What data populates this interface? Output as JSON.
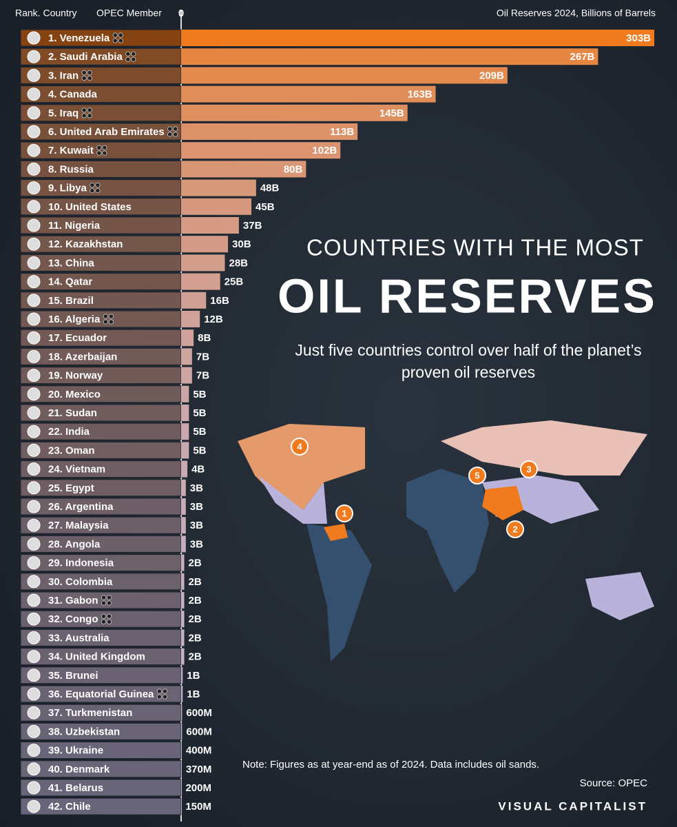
{
  "chart_data": {
    "type": "bar",
    "orientation": "horizontal",
    "title": "COUNTRIES WITH THE MOST",
    "title_main": "OIL RESERVES",
    "subtitle": "Just five countries control over half of the planet’s proven oil reserves",
    "rank_country_label": "Rank. Country",
    "opec_label": "OPEC Member",
    "value_axis_label": "Oil Reserves 2024, Billions of Barrels",
    "note": "Note: Figures as at year-end as of 2024. Data includes oil sands.",
    "source": "Source: OPEC",
    "brand": "VISUAL CAPITALIST",
    "categories": [
      "1. Venezuela",
      "2. Saudi Arabia",
      "3. Iran",
      "4. Canada",
      "5. Iraq",
      "6. United Arab Emirates",
      "7. Kuwait",
      "8. Russia",
      "9. Libya",
      "10. United States",
      "11. Nigeria",
      "12. Kazakhstan",
      "13. China",
      "14. Qatar",
      "15. Brazil",
      "16. Algeria",
      "17. Ecuador",
      "18. Azerbaijan",
      "19. Norway",
      "20. Mexico",
      "21. Sudan",
      "22. India",
      "23. Oman",
      "24. Vietnam",
      "25. Egypt",
      "26. Argentina",
      "27. Malaysia",
      "28. Angola",
      "29. Indonesia",
      "30. Colombia",
      "31. Gabon",
      "32. Congo",
      "33. Australia",
      "34. United Kingdom",
      "35. Brunei",
      "36. Equatorial Guinea",
      "37. Turkmenistan",
      "38. Uzbekistan",
      "39. Ukraine",
      "40. Denmark",
      "41. Belarus",
      "42. Chile"
    ],
    "values": [
      303,
      267,
      209,
      163,
      145,
      113,
      102,
      80,
      48,
      45,
      37,
      30,
      28,
      25,
      16,
      12,
      8,
      7,
      7,
      5,
      5,
      5,
      5,
      4,
      3,
      3,
      3,
      3,
      2,
      2,
      2,
      2,
      2,
      2,
      1,
      1,
      0.6,
      0.6,
      0.4,
      0.37,
      0.2,
      0.15
    ],
    "value_labels": [
      "303B",
      "267B",
      "209B",
      "163B",
      "145B",
      "113B",
      "102B",
      "80B",
      "48B",
      "45B",
      "37B",
      "30B",
      "28B",
      "25B",
      "16B",
      "12B",
      "8B",
      "7B",
      "7B",
      "5B",
      "5B",
      "5B",
      "5B",
      "4B",
      "3B",
      "3B",
      "3B",
      "3B",
      "2B",
      "2B",
      "2B",
      "2B",
      "2B",
      "2B",
      "1B",
      "1B",
      "600M",
      "600M",
      "400M",
      "370M",
      "200M",
      "150M"
    ],
    "opec_member": [
      true,
      true,
      true,
      false,
      true,
      true,
      true,
      false,
      true,
      false,
      false,
      false,
      false,
      false,
      false,
      true,
      false,
      false,
      false,
      false,
      false,
      false,
      false,
      false,
      false,
      false,
      false,
      false,
      false,
      false,
      true,
      true,
      false,
      false,
      false,
      true,
      false,
      false,
      false,
      false,
      false,
      false
    ],
    "color_start": "#f07a1e",
    "color_end": "#bdb8de",
    "xlim": [
      0,
      303
    ],
    "xticks": [
      0
    ],
    "map_markers": [
      "1",
      "2",
      "3",
      "4",
      "5"
    ]
  }
}
